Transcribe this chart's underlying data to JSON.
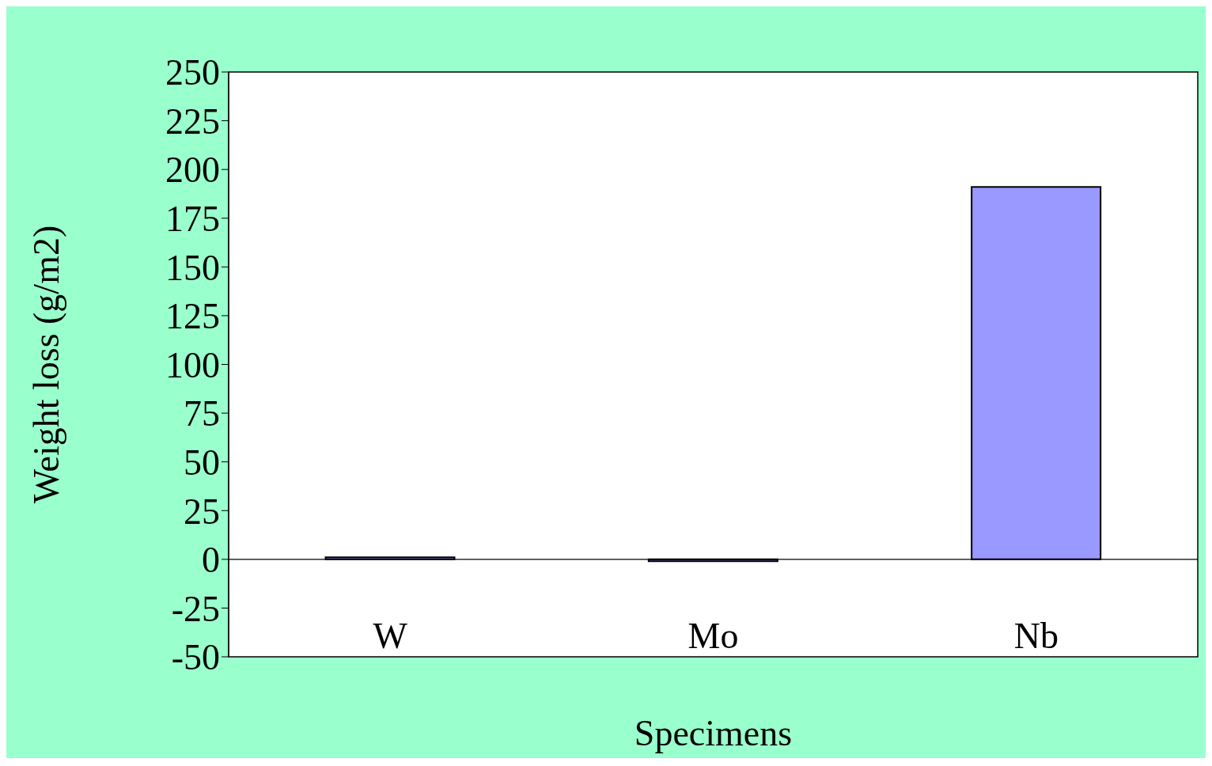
{
  "chart_data": {
    "type": "bar",
    "xlabel": "Specimens",
    "ylabel": "Weight loss (g/m2)",
    "categories": [
      "W",
      "Mo",
      "Nb"
    ],
    "values": [
      1,
      -1,
      191
    ],
    "colors": [
      "#9999ff",
      "#9999ff",
      "#9999ff"
    ],
    "ylim": [
      -50,
      250
    ],
    "yticks": [
      -50,
      -25,
      0,
      25,
      50,
      75,
      100,
      125,
      150,
      175,
      200,
      225,
      250
    ]
  }
}
